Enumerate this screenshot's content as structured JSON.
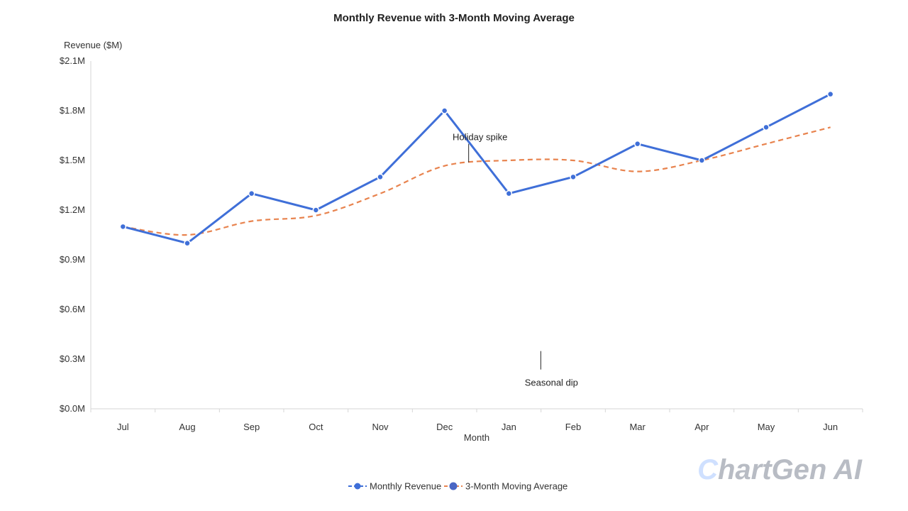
{
  "chart_data": {
    "type": "line",
    "title": "Monthly Revenue with 3-Month Moving Average",
    "xlabel": "Month",
    "ylabel": "Revenue ($M)",
    "categories": [
      "Jul",
      "Aug",
      "Sep",
      "Oct",
      "Nov",
      "Dec",
      "Jan",
      "Feb",
      "Mar",
      "Apr",
      "May",
      "Jun"
    ],
    "ylim": [
      0,
      2.1
    ],
    "yticks": [
      "$0.0M",
      "$0.3M",
      "$0.6M",
      "$0.9M",
      "$1.2M",
      "$1.5M",
      "$1.8M",
      "$2.1M"
    ],
    "series": [
      {
        "name": "Monthly Revenue",
        "color": "#3f6fd8",
        "style": "solid-with-markers",
        "values": [
          1.1,
          1.0,
          1.3,
          1.2,
          1.4,
          1.8,
          1.3,
          1.4,
          1.6,
          1.5,
          1.7,
          1.9
        ]
      },
      {
        "name": "3-Month Moving Average",
        "color": "#e8834e",
        "style": "dashed-smooth",
        "values": [
          1.1,
          1.05,
          1.133,
          1.167,
          1.3,
          1.467,
          1.5,
          1.5,
          1.433,
          1.5,
          1.6,
          1.7
        ]
      }
    ],
    "annotations": [
      {
        "text": "Holiday spike",
        "x": "Dec",
        "y": 1.6
      },
      {
        "text": "Seasonal dip",
        "x": "Jan",
        "y": 0.46
      }
    ],
    "legend_position": "bottom-center",
    "grid": false
  },
  "watermark": "ChartGen AI"
}
